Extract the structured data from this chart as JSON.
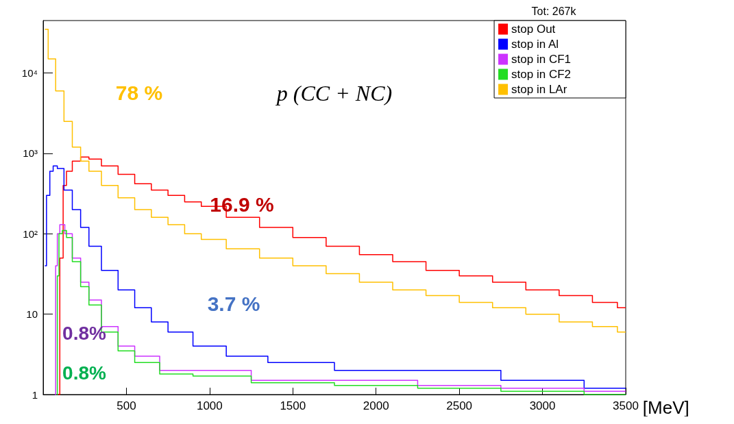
{
  "chart_data": {
    "type": "step",
    "xlabel": "[MeV]",
    "xlim": [
      0,
      3500
    ],
    "xticks": [
      500,
      1000,
      1500,
      2000,
      2500,
      3000,
      3500
    ],
    "ylim": [
      1,
      45000
    ],
    "log": true,
    "yticks": [
      1,
      10,
      {
        "value": 100,
        "label": "10²"
      },
      {
        "value": 1000,
        "label": "10³"
      },
      {
        "value": 10000,
        "label": "10⁴"
      }
    ],
    "grid": false,
    "legend": "top right",
    "line_style": "solid",
    "marker": "none",
    "series": [
      {
        "name": "stop Out",
        "color": "#ff0000",
        "x": [
          90,
          110,
          130,
          150,
          200,
          250,
          300,
          400,
          500,
          600,
          700,
          800,
          900,
          1000,
          1200,
          1400,
          1600,
          1800,
          2000,
          2200,
          2400,
          2600,
          2800,
          3000,
          3200,
          3400,
          3500
        ],
        "values": [
          1,
          50,
          400,
          600,
          800,
          900,
          850,
          700,
          550,
          420,
          350,
          300,
          250,
          220,
          160,
          120,
          90,
          70,
          55,
          45,
          35,
          30,
          25,
          20,
          17,
          14,
          12
        ]
      },
      {
        "name": "stop in Al",
        "color": "#0000ff",
        "x": [
          10,
          30,
          50,
          70,
          100,
          150,
          200,
          250,
          300,
          400,
          500,
          600,
          700,
          800,
          1000,
          1200,
          1500,
          2000,
          2500,
          3000,
          3500
        ],
        "values": [
          40,
          300,
          600,
          700,
          650,
          350,
          200,
          120,
          70,
          35,
          20,
          12,
          8,
          6,
          4,
          3,
          2.5,
          2,
          2,
          1.5,
          1.2
        ]
      },
      {
        "name": "stop in CF1",
        "color": "#cc33ff",
        "x": [
          70,
          80,
          90,
          110,
          150,
          200,
          250,
          300,
          400,
          500,
          600,
          800,
          1000,
          1500,
          2000,
          2500,
          3000,
          3500
        ],
        "values": [
          1,
          40,
          100,
          130,
          100,
          50,
          25,
          15,
          7,
          4,
          3,
          2,
          2,
          1.5,
          1.5,
          1.3,
          1.2,
          1.1
        ]
      },
      {
        "name": "stop in CF2",
        "color": "#22dd22",
        "x": [
          80,
          90,
          100,
          130,
          150,
          200,
          250,
          300,
          400,
          500,
          600,
          800,
          1000,
          1500,
          2000,
          2500,
          3000,
          3500
        ],
        "values": [
          1,
          30,
          100,
          110,
          90,
          45,
          22,
          13,
          6,
          3.5,
          2.5,
          1.8,
          1.7,
          1.4,
          1.3,
          1.2,
          1.1,
          1
        ]
      },
      {
        "name": "stop in LAr",
        "color": "#ffc000",
        "x": [
          10,
          50,
          100,
          150,
          200,
          250,
          300,
          400,
          500,
          600,
          700,
          800,
          900,
          1000,
          1200,
          1400,
          1600,
          1800,
          2000,
          2200,
          2400,
          2600,
          2800,
          3000,
          3200,
          3400,
          3500
        ],
        "values": [
          35000,
          15000,
          6000,
          2500,
          1200,
          800,
          600,
          400,
          280,
          200,
          160,
          130,
          100,
          85,
          65,
          50,
          40,
          32,
          25,
          20,
          17,
          14,
          12,
          10,
          8,
          7,
          6
        ]
      }
    ],
    "annotations": [
      "Tot: 267k",
      "78 %",
      "p (CC + NC)",
      "16.9 %",
      "3.7 %",
      "0.8%",
      "0.8%"
    ]
  }
}
